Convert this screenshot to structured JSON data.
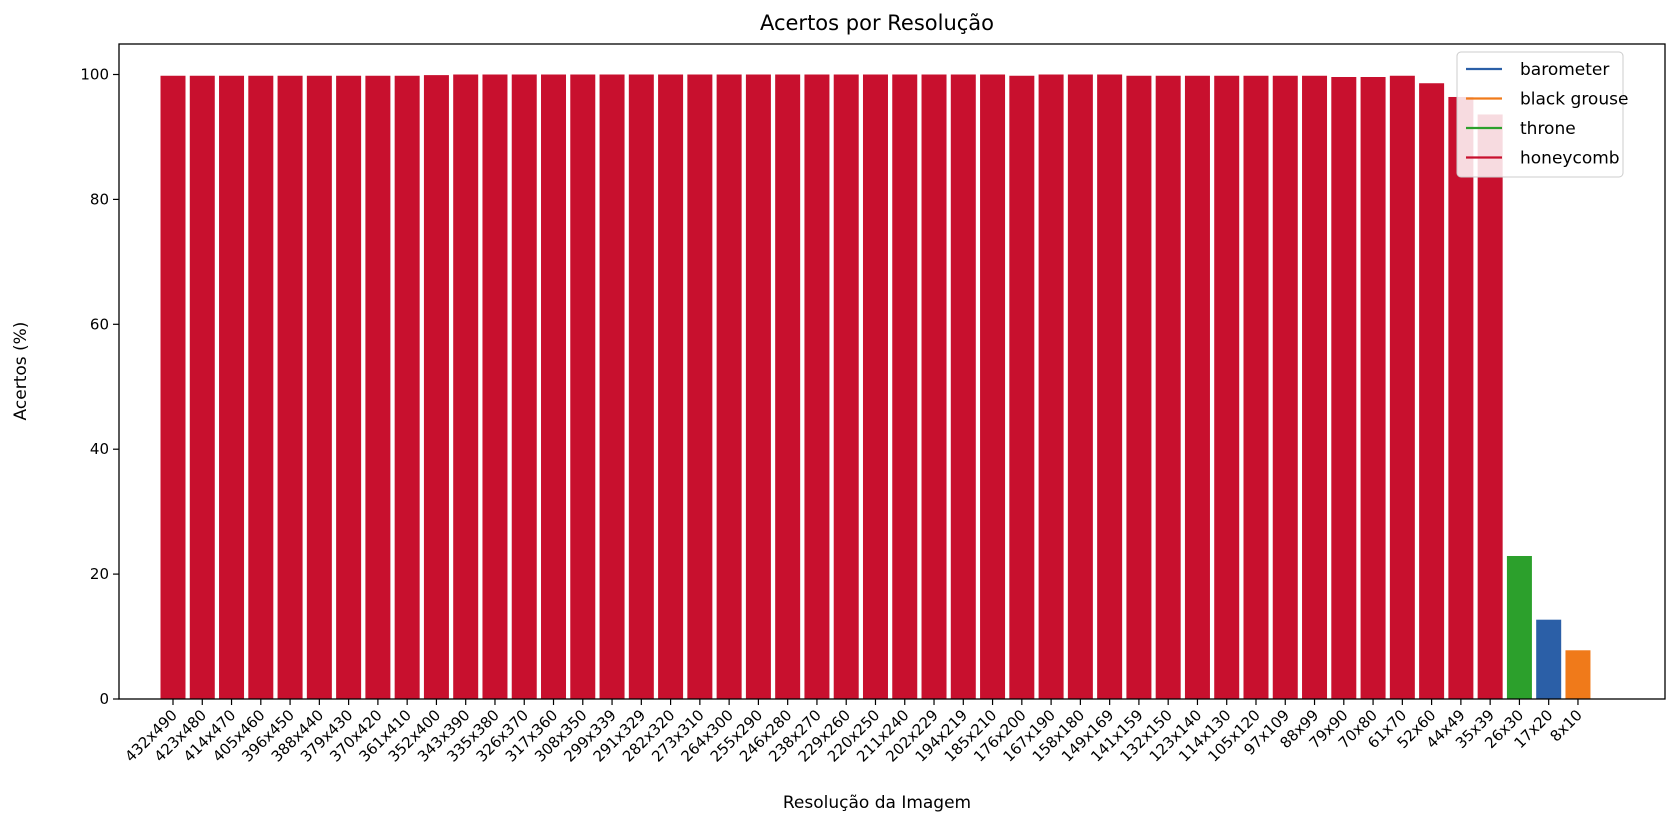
{
  "chart_data": {
    "type": "bar",
    "title": "Acertos por Resolução",
    "xlabel": "Resolução da Imagem",
    "ylabel": "Acertos (%)",
    "ylim": [
      0,
      105
    ],
    "yticks": [
      0,
      20,
      40,
      60,
      80,
      100
    ],
    "grid": false,
    "legend": {
      "placement": "top-right",
      "entries": [
        {
          "label": "barometer",
          "color": "#2b5fa7"
        },
        {
          "label": "black grouse",
          "color": "#f07a1a"
        },
        {
          "label": "throne",
          "color": "#2ca02c"
        },
        {
          "label": "honeycomb",
          "color": "#c8102e"
        }
      ]
    },
    "categories": [
      "432x490",
      "423x480",
      "414x470",
      "405x460",
      "396x450",
      "388x440",
      "379x430",
      "370x420",
      "361x410",
      "352x400",
      "343x390",
      "335x380",
      "326x370",
      "317x360",
      "308x350",
      "299x339",
      "291x329",
      "282x320",
      "273x310",
      "264x300",
      "255x290",
      "246x280",
      "238x270",
      "229x260",
      "220x250",
      "211x240",
      "202x229",
      "194x219",
      "185x210",
      "176x200",
      "167x190",
      "158x180",
      "149x169",
      "141x159",
      "132x150",
      "123x140",
      "114x130",
      "105x120",
      "97x109",
      "88x99",
      "79x90",
      "70x80",
      "61x70",
      "52x60",
      "44x49",
      "35x39",
      "26x30",
      "17x20",
      "8x10"
    ],
    "values": [
      99.8,
      99.8,
      99.8,
      99.8,
      99.8,
      99.8,
      99.8,
      99.8,
      99.8,
      99.9,
      100,
      100,
      100,
      100,
      100,
      100,
      100,
      100,
      100,
      100,
      100,
      100,
      100,
      100,
      100,
      100,
      100,
      100,
      100,
      99.8,
      100,
      100,
      100,
      99.8,
      99.8,
      99.8,
      99.8,
      99.8,
      99.8,
      99.8,
      99.6,
      99.6,
      99.8,
      98.6,
      96.4,
      93.6,
      22.9,
      12.7,
      7.8
    ],
    "top_class": [
      "honeycomb",
      "honeycomb",
      "honeycomb",
      "honeycomb",
      "honeycomb",
      "honeycomb",
      "honeycomb",
      "honeycomb",
      "honeycomb",
      "honeycomb",
      "honeycomb",
      "honeycomb",
      "honeycomb",
      "honeycomb",
      "honeycomb",
      "honeycomb",
      "honeycomb",
      "honeycomb",
      "honeycomb",
      "honeycomb",
      "honeycomb",
      "honeycomb",
      "honeycomb",
      "honeycomb",
      "honeycomb",
      "honeycomb",
      "honeycomb",
      "honeycomb",
      "honeycomb",
      "honeycomb",
      "honeycomb",
      "honeycomb",
      "honeycomb",
      "honeycomb",
      "honeycomb",
      "honeycomb",
      "honeycomb",
      "honeycomb",
      "honeycomb",
      "honeycomb",
      "honeycomb",
      "honeycomb",
      "honeycomb",
      "honeycomb",
      "honeycomb",
      "honeycomb",
      "throne",
      "barometer",
      "black grouse"
    ]
  }
}
